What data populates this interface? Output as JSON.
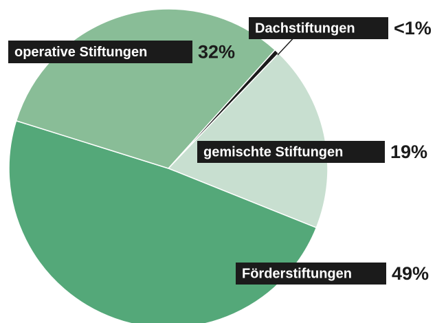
{
  "chart_data": {
    "type": "pie",
    "categories": [
      "Dachstiftungen",
      "gemischte Stiftungen",
      "Förderstiftungen",
      "operative Stiftungen"
    ],
    "values": [
      0.5,
      19,
      49,
      32
    ],
    "value_labels": [
      "<1%",
      "19%",
      "49%",
      "32%"
    ],
    "colors": [
      "#1b1b1b",
      "#c8dfd0",
      "#54a879",
      "#89bd97"
    ]
  }
}
